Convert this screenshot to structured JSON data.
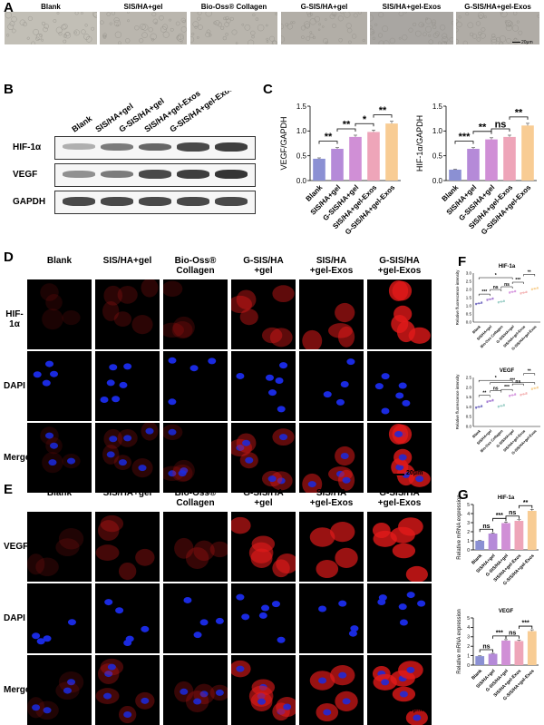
{
  "panel_labels": {
    "a": "A",
    "b": "B",
    "c": "C",
    "d": "D",
    "e": "E",
    "f": "F",
    "g": "G"
  },
  "panelA": {
    "groups": [
      "Blank",
      "SIS/HA+gel",
      "Bio-Oss® Collagen",
      "G-SIS/HA+gel",
      "SIS/HA+gel-Exos",
      "G-SIS/HA+gel-Exos"
    ],
    "scale": "20μm"
  },
  "panelB": {
    "lanes": [
      "Blank",
      "SIS/HA+gel",
      "G-SIS/HA+gel",
      "SIS/HA+gel-Exos",
      "G-SIS/HA+gel-Exos"
    ],
    "rows": [
      "HIF-1α",
      "VEGF",
      "GAPDH"
    ]
  },
  "panelD": {
    "headers": [
      "Blank",
      "SIS/HA+gel",
      "Bio-Oss®\nCollagen",
      "G-SIS/HA\n+gel",
      "SIS/HA\n+gel-Exos",
      "G-SIS/HA\n+gel-Exos"
    ],
    "rows": [
      "HIF-1α",
      "DAPI",
      "Merge"
    ],
    "scale": "20μm"
  },
  "panelE": {
    "headers": [
      "Blank",
      "SIS/HA+gel",
      "Bio-Oss®\nCollagen",
      "G-SIS/HA\n+gel",
      "SIS/HA\n+gel-Exos",
      "G-SIS/HA\n+gel-Exos"
    ],
    "rows": [
      "VEGF",
      "DAPI",
      "Merge"
    ],
    "scale": "20μm"
  },
  "colors": {
    "bars": [
      "#8b90d3",
      "#b58ad8",
      "#d08fd6",
      "#eea5b9",
      "#f8cc94"
    ],
    "bars6": [
      "#7a73c4",
      "#a77dd4",
      "#9fd0c9",
      "#d89be0",
      "#f4b7b8",
      "#f8d39a"
    ],
    "fluor_red": "#e21a1a",
    "fluor_blue": "#1a2ae0"
  },
  "chart_data": [
    {
      "id": "C-VEGF",
      "type": "bar",
      "categories": [
        "Blank",
        "SIS/HA+gel",
        "G-SIS/HA+gel",
        "SIS/HA+gel-Exos",
        "G-SIS/HA+gel-Exos"
      ],
      "values": [
        0.44,
        0.64,
        0.88,
        0.98,
        1.15
      ],
      "ylabel": "VEGF/GAPDH",
      "ylim": [
        0,
        1.5
      ],
      "yticks": [
        "0.0",
        "0.5",
        "1.0",
        "1.5"
      ],
      "sig": [
        "**",
        "**",
        "*",
        "**"
      ]
    },
    {
      "id": "C-HIF",
      "type": "bar",
      "categories": [
        "Blank",
        "SIS/HA+gel",
        "G-SIS/HA+gel",
        "SIS/HA+gel-Exos",
        "G-SIS/HA+gel-Exos"
      ],
      "values": [
        0.22,
        0.64,
        0.83,
        0.88,
        1.11
      ],
      "ylabel": "HIF-1α/GAPDH",
      "ylim": [
        0,
        1.5
      ],
      "yticks": [
        "0.0",
        "0.5",
        "1.0",
        "1.5"
      ],
      "sig": [
        "***",
        "**",
        "ns",
        "**"
      ]
    },
    {
      "id": "F-HIF",
      "type": "scatter",
      "title": "HIF-1a",
      "categories": [
        "Blank",
        "SIS/HA+gel",
        "Bio-Oss Collagen",
        "G-SIS/HA+gel",
        "SIS/HA+gel-Exos",
        "G-SIS/HA+gel-Exos"
      ],
      "values": [
        1.15,
        1.4,
        1.25,
        1.85,
        1.8,
        2.05
      ],
      "ylabel": "Relative fluorescence intensity",
      "ylim": [
        0,
        3.0
      ],
      "yticks": [
        "0.0",
        "0.5",
        "1.0",
        "1.5",
        "2.0",
        "2.5",
        "3.0"
      ],
      "sig": [
        "***",
        "ns",
        "*",
        "ns",
        "***",
        "**"
      ]
    },
    {
      "id": "F-VEGF",
      "type": "scatter",
      "title": "VEGF",
      "categories": [
        "Blank",
        "SIS/HA+gel",
        "Bio-Oss Collagen",
        "G-SIS/HA+gel",
        "SIS/HA+gel-Exos",
        "G-SIS/HA+gel-Exos"
      ],
      "values": [
        1.0,
        1.3,
        1.05,
        1.6,
        1.65,
        1.95
      ],
      "ylabel": "Relative fluorescence intensity",
      "ylim": [
        0,
        2.5
      ],
      "yticks": [
        "0.0",
        "0.5",
        "1.0",
        "1.5",
        "2.0",
        "2.5"
      ],
      "sig": [
        "**",
        "ns",
        "*",
        "***",
        "ns",
        "**",
        "***"
      ]
    },
    {
      "id": "G-HIF",
      "type": "bar",
      "title": "HIF-1a",
      "categories": [
        "Blank",
        "SIS/HA+gel",
        "G-SIS/HA+gel",
        "SIS/HA+gel-Exos",
        "G-SIS/HA+gel-Exos"
      ],
      "values": [
        1.0,
        1.8,
        2.95,
        3.2,
        4.3
      ],
      "ylabel": "Relative mRNA expression",
      "ylim": [
        0,
        5
      ],
      "yticks": [
        "0",
        "1",
        "2",
        "3",
        "4",
        "5"
      ],
      "sig": [
        "ns",
        "***",
        "ns",
        "**"
      ]
    },
    {
      "id": "G-VEGF",
      "type": "bar",
      "title": "VEGF",
      "categories": [
        "Blank",
        "SIS/HA+gel",
        "G-SIS/HA+gel",
        "SIS/HA+gel-Exos",
        "G-SIS/HA+gel-Exos"
      ],
      "values": [
        0.95,
        1.2,
        2.6,
        2.55,
        3.6
      ],
      "ylabel": "Relative mRNA expression",
      "ylim": [
        0,
        5
      ],
      "yticks": [
        "0",
        "1",
        "2",
        "3",
        "4",
        "5"
      ],
      "sig": [
        "ns",
        "***",
        "ns",
        "***"
      ]
    }
  ]
}
